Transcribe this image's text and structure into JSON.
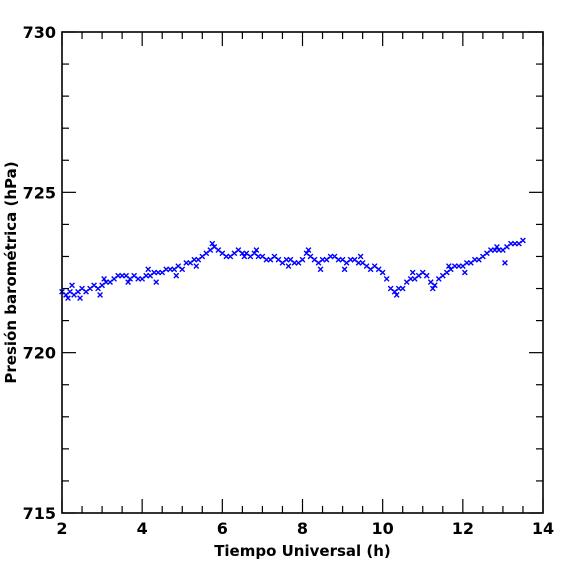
{
  "chart_data": {
    "type": "scatter",
    "xlabel": "Tiempo Universal (h)",
    "ylabel": "Presión barométrica (hPa)",
    "xlim": [
      2,
      14
    ],
    "ylim": [
      715,
      730
    ],
    "x_ticks": [
      2,
      4,
      6,
      8,
      10,
      12,
      14
    ],
    "y_ticks": [
      715,
      720,
      725,
      730
    ],
    "x_tick_labels": [
      "2",
      "4",
      "6",
      "8",
      "10",
      "12",
      "14"
    ],
    "y_tick_labels": [
      "715",
      "720",
      "725",
      "730"
    ],
    "marker": "x",
    "marker_color": "#0000ff",
    "grid": false,
    "series": [
      {
        "points": [
          [
            2.0,
            721.9
          ],
          [
            2.1,
            721.8
          ],
          [
            2.2,
            721.9
          ],
          [
            2.3,
            721.8
          ],
          [
            2.4,
            721.9
          ],
          [
            2.5,
            722.0
          ],
          [
            2.6,
            721.9
          ],
          [
            2.7,
            722.0
          ],
          [
            2.8,
            722.1
          ],
          [
            2.9,
            722.0
          ],
          [
            3.0,
            722.1
          ],
          [
            3.1,
            722.2
          ],
          [
            3.2,
            722.2
          ],
          [
            3.3,
            722.3
          ],
          [
            3.4,
            722.4
          ],
          [
            3.5,
            722.4
          ],
          [
            3.6,
            722.4
          ],
          [
            3.7,
            722.3
          ],
          [
            3.8,
            722.4
          ],
          [
            3.9,
            722.3
          ],
          [
            4.0,
            722.3
          ],
          [
            4.1,
            722.4
          ],
          [
            4.2,
            722.4
          ],
          [
            4.3,
            722.5
          ],
          [
            4.4,
            722.5
          ],
          [
            4.5,
            722.5
          ],
          [
            4.6,
            722.6
          ],
          [
            4.7,
            722.6
          ],
          [
            4.8,
            722.6
          ],
          [
            4.9,
            722.7
          ],
          [
            5.0,
            722.6
          ],
          [
            5.1,
            722.8
          ],
          [
            5.2,
            722.8
          ],
          [
            5.3,
            722.9
          ],
          [
            5.4,
            722.9
          ],
          [
            5.5,
            723.0
          ],
          [
            5.6,
            723.1
          ],
          [
            5.7,
            723.2
          ],
          [
            5.8,
            723.3
          ],
          [
            5.9,
            723.2
          ],
          [
            6.0,
            723.1
          ],
          [
            6.1,
            723.0
          ],
          [
            6.2,
            723.0
          ],
          [
            6.3,
            723.1
          ],
          [
            6.4,
            723.2
          ],
          [
            6.5,
            723.1
          ],
          [
            6.6,
            723.1
          ],
          [
            6.7,
            723.0
          ],
          [
            6.8,
            723.1
          ],
          [
            6.9,
            723.0
          ],
          [
            7.0,
            723.0
          ],
          [
            7.1,
            722.9
          ],
          [
            7.2,
            722.9
          ],
          [
            7.3,
            723.0
          ],
          [
            7.4,
            722.9
          ],
          [
            7.5,
            722.8
          ],
          [
            7.6,
            722.9
          ],
          [
            7.7,
            722.9
          ],
          [
            7.8,
            722.8
          ],
          [
            7.9,
            722.8
          ],
          [
            8.0,
            722.9
          ],
          [
            8.1,
            723.1
          ],
          [
            8.2,
            723.0
          ],
          [
            8.3,
            722.9
          ],
          [
            8.4,
            722.8
          ],
          [
            8.5,
            722.9
          ],
          [
            8.6,
            722.9
          ],
          [
            8.7,
            723.0
          ],
          [
            8.8,
            723.0
          ],
          [
            8.9,
            722.9
          ],
          [
            9.0,
            722.9
          ],
          [
            9.1,
            722.8
          ],
          [
            9.2,
            722.9
          ],
          [
            9.3,
            722.9
          ],
          [
            9.4,
            722.8
          ],
          [
            9.5,
            722.8
          ],
          [
            9.6,
            722.7
          ],
          [
            9.7,
            722.6
          ],
          [
            9.8,
            722.7
          ],
          [
            9.9,
            722.6
          ],
          [
            10.0,
            722.5
          ],
          [
            10.1,
            722.3
          ],
          [
            10.2,
            722.0
          ],
          [
            10.3,
            721.9
          ],
          [
            10.4,
            722.0
          ],
          [
            10.5,
            722.0
          ],
          [
            10.6,
            722.2
          ],
          [
            10.7,
            722.3
          ],
          [
            10.8,
            722.3
          ],
          [
            10.9,
            722.4
          ],
          [
            11.0,
            722.5
          ],
          [
            11.1,
            722.4
          ],
          [
            11.2,
            722.2
          ],
          [
            11.3,
            722.1
          ],
          [
            11.4,
            722.3
          ],
          [
            11.5,
            722.4
          ],
          [
            11.6,
            722.5
          ],
          [
            11.7,
            722.6
          ],
          [
            11.8,
            722.7
          ],
          [
            11.9,
            722.7
          ],
          [
            12.0,
            722.7
          ],
          [
            12.1,
            722.8
          ],
          [
            12.2,
            722.8
          ],
          [
            12.3,
            722.9
          ],
          [
            12.4,
            722.9
          ],
          [
            12.5,
            723.0
          ],
          [
            12.6,
            723.1
          ],
          [
            12.7,
            723.2
          ],
          [
            12.8,
            723.2
          ],
          [
            12.9,
            723.2
          ],
          [
            13.0,
            723.2
          ],
          [
            13.1,
            723.3
          ],
          [
            13.2,
            723.4
          ],
          [
            13.3,
            723.4
          ],
          [
            13.4,
            723.4
          ],
          [
            13.5,
            723.5
          ],
          [
            2.15,
            721.7
          ],
          [
            2.45,
            721.7
          ],
          [
            2.95,
            721.8
          ],
          [
            3.65,
            722.2
          ],
          [
            4.35,
            722.2
          ],
          [
            4.85,
            722.4
          ],
          [
            5.35,
            722.7
          ],
          [
            6.55,
            723.0
          ],
          [
            7.65,
            722.7
          ],
          [
            8.45,
            722.6
          ],
          [
            9.05,
            722.6
          ],
          [
            10.35,
            721.8
          ],
          [
            11.25,
            722.0
          ],
          [
            12.05,
            722.5
          ],
          [
            13.05,
            722.8
          ],
          [
            2.25,
            722.1
          ],
          [
            3.05,
            722.3
          ],
          [
            4.15,
            722.6
          ],
          [
            5.75,
            723.4
          ],
          [
            6.85,
            723.2
          ],
          [
            8.15,
            723.2
          ],
          [
            9.45,
            723.0
          ],
          [
            10.75,
            722.5
          ],
          [
            11.65,
            722.7
          ],
          [
            12.85,
            723.3
          ]
        ]
      }
    ]
  }
}
